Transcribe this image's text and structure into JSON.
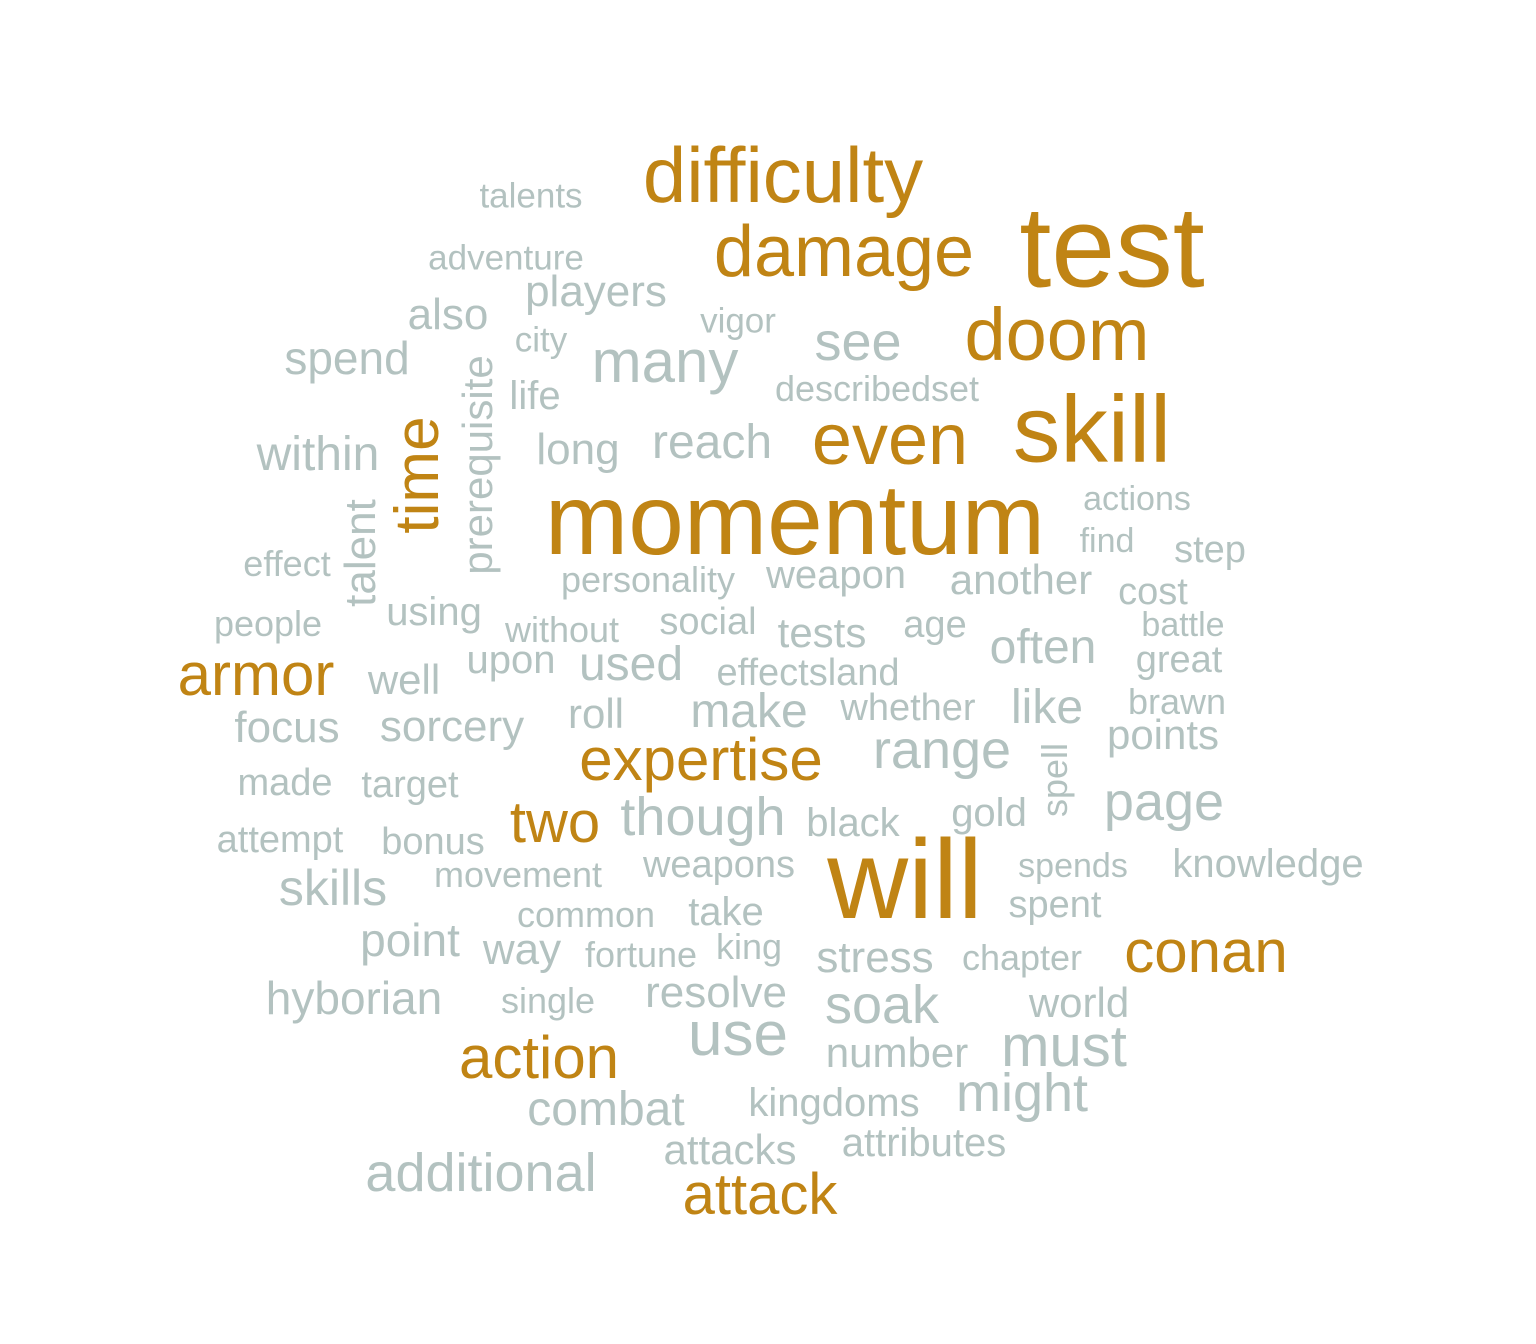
{
  "colors": {
    "primary": "#c08414",
    "secondary": "#b3c2c0"
  },
  "words": [
    {
      "text": "momentum",
      "tier": "primary"
    },
    {
      "text": "will",
      "tier": "primary"
    },
    {
      "text": "test",
      "tier": "primary"
    },
    {
      "text": "skill",
      "tier": "primary"
    },
    {
      "text": "difficulty",
      "tier": "primary"
    },
    {
      "text": "damage",
      "tier": "primary"
    },
    {
      "text": "doom",
      "tier": "primary"
    },
    {
      "text": "even",
      "tier": "primary"
    },
    {
      "text": "time",
      "tier": "primary"
    },
    {
      "text": "armor",
      "tier": "primary"
    },
    {
      "text": "expertise",
      "tier": "primary"
    },
    {
      "text": "two",
      "tier": "primary"
    },
    {
      "text": "conan",
      "tier": "primary"
    },
    {
      "text": "action",
      "tier": "primary"
    },
    {
      "text": "attack",
      "tier": "primary"
    },
    {
      "text": "talents",
      "tier": "secondary"
    },
    {
      "text": "adventure",
      "tier": "secondary"
    },
    {
      "text": "players",
      "tier": "secondary"
    },
    {
      "text": "also",
      "tier": "secondary"
    },
    {
      "text": "vigor",
      "tier": "secondary"
    },
    {
      "text": "city",
      "tier": "secondary"
    },
    {
      "text": "spend",
      "tier": "secondary"
    },
    {
      "text": "many",
      "tier": "secondary"
    },
    {
      "text": "see",
      "tier": "secondary"
    },
    {
      "text": "prerequisite",
      "tier": "secondary"
    },
    {
      "text": "life",
      "tier": "secondary"
    },
    {
      "text": "describedset",
      "tier": "secondary"
    },
    {
      "text": "within",
      "tier": "secondary"
    },
    {
      "text": "long",
      "tier": "secondary"
    },
    {
      "text": "reach",
      "tier": "secondary"
    },
    {
      "text": "actions",
      "tier": "secondary"
    },
    {
      "text": "talent",
      "tier": "secondary"
    },
    {
      "text": "find",
      "tier": "secondary"
    },
    {
      "text": "effect",
      "tier": "secondary"
    },
    {
      "text": "step",
      "tier": "secondary"
    },
    {
      "text": "personality",
      "tier": "secondary"
    },
    {
      "text": "weapon",
      "tier": "secondary"
    },
    {
      "text": "another",
      "tier": "secondary"
    },
    {
      "text": "cost",
      "tier": "secondary"
    },
    {
      "text": "using",
      "tier": "secondary"
    },
    {
      "text": "people",
      "tier": "secondary"
    },
    {
      "text": "without",
      "tier": "secondary"
    },
    {
      "text": "social",
      "tier": "secondary"
    },
    {
      "text": "tests",
      "tier": "secondary"
    },
    {
      "text": "age",
      "tier": "secondary"
    },
    {
      "text": "battle",
      "tier": "secondary"
    },
    {
      "text": "upon",
      "tier": "secondary"
    },
    {
      "text": "used",
      "tier": "secondary"
    },
    {
      "text": "often",
      "tier": "secondary"
    },
    {
      "text": "great",
      "tier": "secondary"
    },
    {
      "text": "well",
      "tier": "secondary"
    },
    {
      "text": "effectsland",
      "tier": "secondary"
    },
    {
      "text": "brawn",
      "tier": "secondary"
    },
    {
      "text": "like",
      "tier": "secondary"
    },
    {
      "text": "focus",
      "tier": "secondary"
    },
    {
      "text": "sorcery",
      "tier": "secondary"
    },
    {
      "text": "roll",
      "tier": "secondary"
    },
    {
      "text": "make",
      "tier": "secondary"
    },
    {
      "text": "whether",
      "tier": "secondary"
    },
    {
      "text": "points",
      "tier": "secondary"
    },
    {
      "text": "range",
      "tier": "secondary"
    },
    {
      "text": "spell",
      "tier": "secondary"
    },
    {
      "text": "made",
      "tier": "secondary"
    },
    {
      "text": "target",
      "tier": "secondary"
    },
    {
      "text": "page",
      "tier": "secondary"
    },
    {
      "text": "though",
      "tier": "secondary"
    },
    {
      "text": "black",
      "tier": "secondary"
    },
    {
      "text": "gold",
      "tier": "secondary"
    },
    {
      "text": "attempt",
      "tier": "secondary"
    },
    {
      "text": "bonus",
      "tier": "secondary"
    },
    {
      "text": "spends",
      "tier": "secondary"
    },
    {
      "text": "knowledge",
      "tier": "secondary"
    },
    {
      "text": "movement",
      "tier": "secondary"
    },
    {
      "text": "weapons",
      "tier": "secondary"
    },
    {
      "text": "skills",
      "tier": "secondary"
    },
    {
      "text": "spent",
      "tier": "secondary"
    },
    {
      "text": "common",
      "tier": "secondary"
    },
    {
      "text": "take",
      "tier": "secondary"
    },
    {
      "text": "point",
      "tier": "secondary"
    },
    {
      "text": "way",
      "tier": "secondary"
    },
    {
      "text": "fortune",
      "tier": "secondary"
    },
    {
      "text": "king",
      "tier": "secondary"
    },
    {
      "text": "stress",
      "tier": "secondary"
    },
    {
      "text": "chapter",
      "tier": "secondary"
    },
    {
      "text": "hyborian",
      "tier": "secondary"
    },
    {
      "text": "single",
      "tier": "secondary"
    },
    {
      "text": "resolve",
      "tier": "secondary"
    },
    {
      "text": "soak",
      "tier": "secondary"
    },
    {
      "text": "world",
      "tier": "secondary"
    },
    {
      "text": "use",
      "tier": "secondary"
    },
    {
      "text": "number",
      "tier": "secondary"
    },
    {
      "text": "must",
      "tier": "secondary"
    },
    {
      "text": "might",
      "tier": "secondary"
    },
    {
      "text": "combat",
      "tier": "secondary"
    },
    {
      "text": "kingdoms",
      "tier": "secondary"
    },
    {
      "text": "attacks",
      "tier": "secondary"
    },
    {
      "text": "attributes",
      "tier": "secondary"
    },
    {
      "text": "additional",
      "tier": "secondary"
    }
  ]
}
